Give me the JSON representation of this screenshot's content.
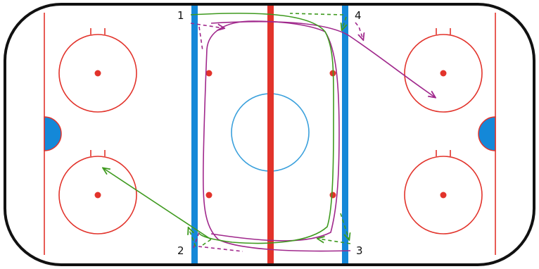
{
  "labels": {
    "p1": "1",
    "p2": "2",
    "p3": "3",
    "p4": "4"
  },
  "colors": {
    "boards": "#111111",
    "red_line": "#e2332b",
    "blue_line": "#1488d8",
    "center_circle": "#3aa0dc",
    "faceoff": "#e2332b",
    "crease": "#1488d8",
    "route_green": "#3f9a1f",
    "route_purple": "#a0288c"
  },
  "icons": {
    "skate_route": "solid-arrow",
    "pass_route": "dashed-arrow"
  }
}
